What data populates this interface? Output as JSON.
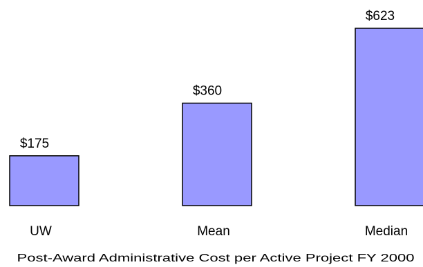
{
  "chart_data": {
    "type": "bar",
    "title": "",
    "xlabel": "Post-Award Administrative Cost per Active Project FY 2000",
    "ylabel": "",
    "categories": [
      "UW",
      "Mean",
      "Median"
    ],
    "values": [
      175,
      360,
      623
    ],
    "data_labels": [
      "$175",
      "$360",
      "$623"
    ],
    "ylim": [
      0,
      623
    ],
    "grid": false,
    "legend": "none",
    "bar_color": "#9999ff",
    "bar_outline_color": "#000000"
  }
}
